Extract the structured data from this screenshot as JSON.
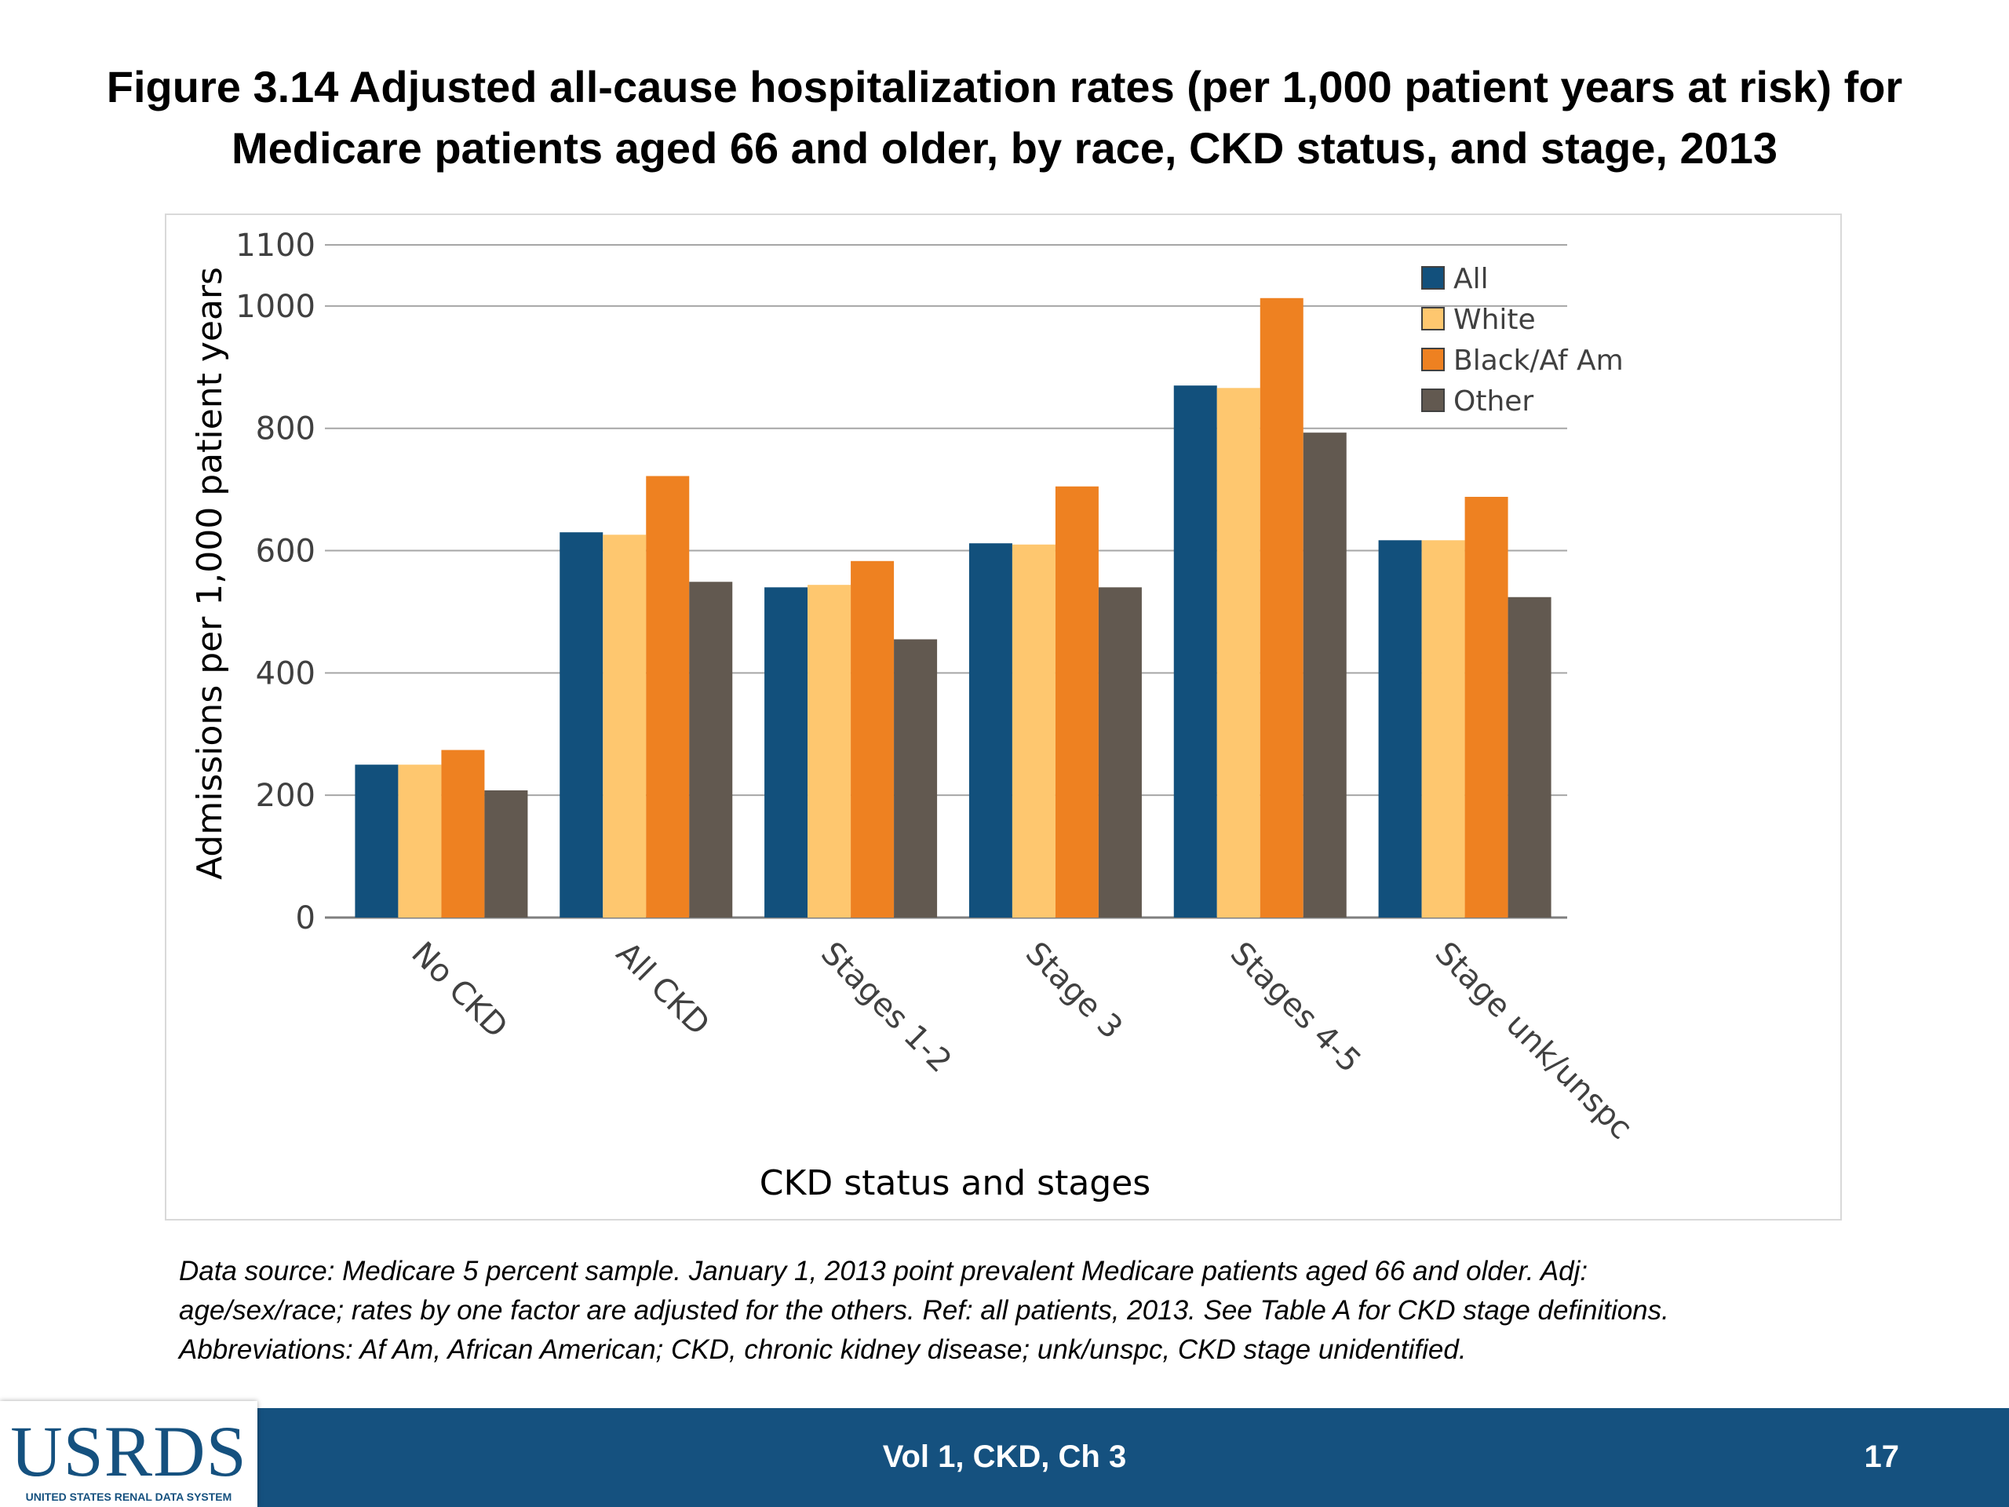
{
  "slide": {
    "title_line1": "Figure 3.14  Adjusted all-cause hospitalization rates (per 1,000 patient years at risk) for",
    "title_line2": "Medicare patients aged 66 and older, by race, CKD status, and stage, 2013",
    "source_line1": "Data source: Medicare 5 percent sample. January 1, 2013 point prevalent Medicare patients aged 66 and older. Adj:",
    "source_line2": "age/sex/race; rates by one factor are adjusted for the others. Ref: all patients, 2013. See Table A for CKD stage definitions.",
    "source_line3": "Abbreviations: Af Am, African American; CKD, chronic kidney disease; unk/unspc, CKD stage unidentified."
  },
  "footer": {
    "logo_text": "USRDS",
    "logo_tagline": "UNITED STATES RENAL DATA SYSTEM",
    "center_text": "Vol 1, CKD, Ch 3",
    "page_number": "17",
    "bar_color": "#15517f"
  },
  "chart_data": {
    "type": "bar",
    "title": "",
    "xlabel": "CKD status and stages",
    "ylabel": "Admissions per 1,000 patient years",
    "ylim": [
      0,
      1100
    ],
    "yticks": [
      0,
      200,
      400,
      600,
      800,
      1000,
      1100
    ],
    "grid": true,
    "legend_position": "top-right",
    "categories": [
      "No CKD",
      "All CKD",
      "Stages 1-2",
      "Stage 3",
      "Stages 4-5",
      "Stage unk/unspc"
    ],
    "series": [
      {
        "name": "All",
        "color": "#12507c",
        "values": [
          250,
          630,
          540,
          612,
          870,
          617
        ]
      },
      {
        "name": "White",
        "color": "#fec76f",
        "values": [
          250,
          626,
          544,
          610,
          866,
          617
        ]
      },
      {
        "name": "Black/Af Am",
        "color": "#ee8121",
        "values": [
          274,
          722,
          583,
          705,
          1013,
          688
        ]
      },
      {
        "name": "Other",
        "color": "#625950",
        "values": [
          208,
          549,
          455,
          540,
          793,
          524
        ]
      }
    ]
  }
}
